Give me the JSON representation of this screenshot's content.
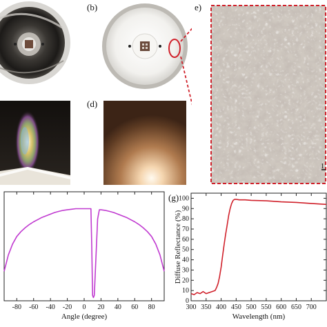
{
  "panel_labels": {
    "b": "(b)",
    "d": "(d)",
    "e": "e)",
    "g": "(g)"
  },
  "micro_scale_text": "1",
  "chart_data": [
    {
      "type": "line",
      "title": "",
      "xlabel": "Angle (degree)",
      "ylabel": "",
      "xlim": [
        -95,
        95
      ],
      "ylim": [
        0,
        1
      ],
      "x_ticks": [
        "-80",
        "-60",
        "-40",
        "-20",
        "0",
        "20",
        "40",
        "60",
        "80"
      ],
      "x_tick_values": [
        -80,
        -60,
        -40,
        -20,
        0,
        20,
        40,
        60,
        80
      ],
      "color": "#c03ad0",
      "series": [
        {
          "x": [
            -95,
            -90,
            -85,
            -80,
            -75,
            -70,
            -65,
            -60,
            -55,
            -50,
            -45,
            -40,
            -35,
            -30,
            -25,
            -20,
            -15,
            -10,
            -5,
            0,
            5,
            8,
            9,
            10,
            11,
            12,
            14,
            16,
            18,
            20,
            25,
            30,
            35,
            40,
            45,
            50,
            55,
            60,
            65,
            70,
            75,
            80,
            85,
            90,
            95
          ],
          "y": [
            0.27,
            0.42,
            0.52,
            0.59,
            0.635,
            0.67,
            0.7,
            0.725,
            0.745,
            0.765,
            0.78,
            0.795,
            0.81,
            0.82,
            0.83,
            0.835,
            0.84,
            0.845,
            0.845,
            0.845,
            0.845,
            0.845,
            0.5,
            0.05,
            0.03,
            0.05,
            0.4,
            0.75,
            0.835,
            0.835,
            0.83,
            0.82,
            0.81,
            0.795,
            0.78,
            0.765,
            0.745,
            0.725,
            0.7,
            0.67,
            0.635,
            0.59,
            0.52,
            0.42,
            0.27
          ]
        }
      ]
    },
    {
      "type": "line",
      "title": "",
      "xlabel": "Wavelength (nm)",
      "ylabel": "Diffuse Reflectance (%)",
      "xlim": [
        300,
        750
      ],
      "ylim": [
        0,
        105
      ],
      "x_ticks": [
        "300",
        "350",
        "400",
        "450",
        "500",
        "550",
        "600",
        "650",
        "700"
      ],
      "x_tick_values": [
        300,
        350,
        400,
        450,
        500,
        550,
        600,
        650,
        700
      ],
      "y_ticks": [
        "0",
        "10",
        "20",
        "30",
        "40",
        "50",
        "60",
        "70",
        "80",
        "90",
        "100"
      ],
      "y_tick_values": [
        0,
        10,
        20,
        30,
        40,
        50,
        60,
        70,
        80,
        90,
        100
      ],
      "color": "#d0202a",
      "series": [
        {
          "x": [
            300,
            310,
            320,
            330,
            340,
            350,
            360,
            370,
            380,
            385,
            390,
            395,
            400,
            405,
            410,
            415,
            420,
            425,
            430,
            435,
            440,
            445,
            450,
            460,
            480,
            500,
            550,
            600,
            650,
            700,
            750
          ],
          "y": [
            7,
            6,
            8,
            7,
            9,
            7,
            8,
            9,
            10,
            13,
            17,
            24,
            33,
            44,
            55,
            65,
            74,
            83,
            90,
            95,
            98,
            99,
            99,
            98.5,
            98.5,
            98,
            97.5,
            96.5,
            96,
            95,
            94
          ]
        }
      ]
    }
  ]
}
